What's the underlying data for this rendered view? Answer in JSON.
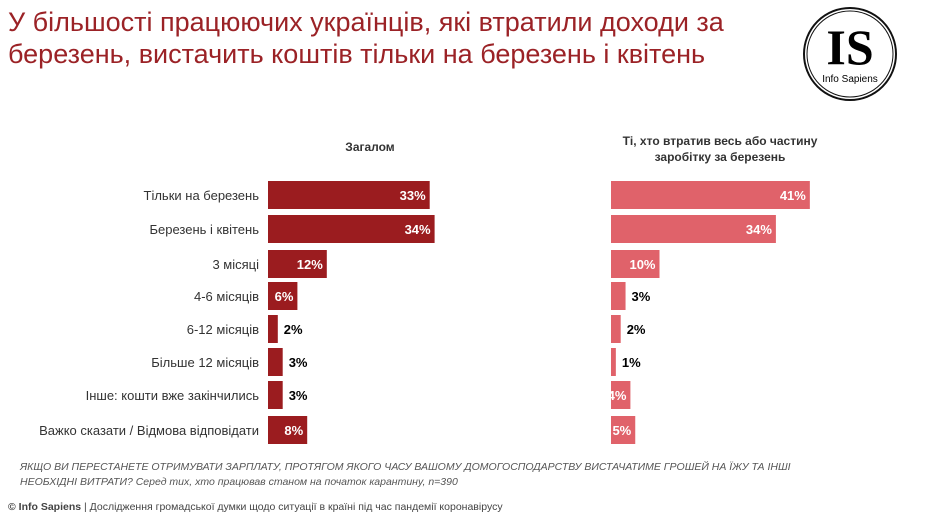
{
  "title": "У більшості працюючих українців, які втратили доходи за березень, вистачить коштів тільки на березень і квітень",
  "logo": {
    "text": "IS",
    "subtext": "Info Sapiens"
  },
  "chart_data": [
    {
      "type": "bar",
      "orientation": "horizontal",
      "title": "Загалом",
      "color": "#9b1c1f",
      "categories": [
        "Тільки на березень",
        "Березень і квітень",
        "3 місяці",
        "4-6 місяців",
        "6-12 місяців",
        "Більше 12 місяців",
        "Інше: кошти вже закінчились",
        "Важко сказати / Відмова відповідати"
      ],
      "values": [
        33,
        34,
        12,
        6,
        2,
        3,
        3,
        8
      ],
      "unit": "%"
    },
    {
      "type": "bar",
      "orientation": "horizontal",
      "title": "Ті, хто втратив весь або частину заробітку за березень",
      "color": "#e0626a",
      "categories": [
        "Тільки на березень",
        "Березень і квітень",
        "3 місяці",
        "4-6 місяців",
        "6-12 місяців",
        "Більше 12 місяців",
        "Інше: кошти вже закінчились",
        "Важко сказати / Відмова відповідати"
      ],
      "values": [
        41,
        34,
        10,
        3,
        2,
        1,
        4,
        5
      ],
      "unit": "%"
    }
  ],
  "question": "ЯКЩО ВИ ПЕРЕСТАНЕТЕ ОТРИМУВАТИ ЗАРПЛАТУ, ПРОТЯГОМ ЯКОГО ЧАСУ ВАШОМУ ДОМОГОСПОДАРСТВУ ВИСТАЧАТИМЕ ГРОШЕЙ НА ЇЖУ ТА ІНШІ НЕОБХІДНІ ВИТРАТИ? Серед тих, хто працював станом на початок карантину, n=390",
  "footer": {
    "brand": "© Info Sapiens",
    "text": " | Дослідження громадської думки щодо ситуації в країні під час пандемії коронавірусу"
  }
}
